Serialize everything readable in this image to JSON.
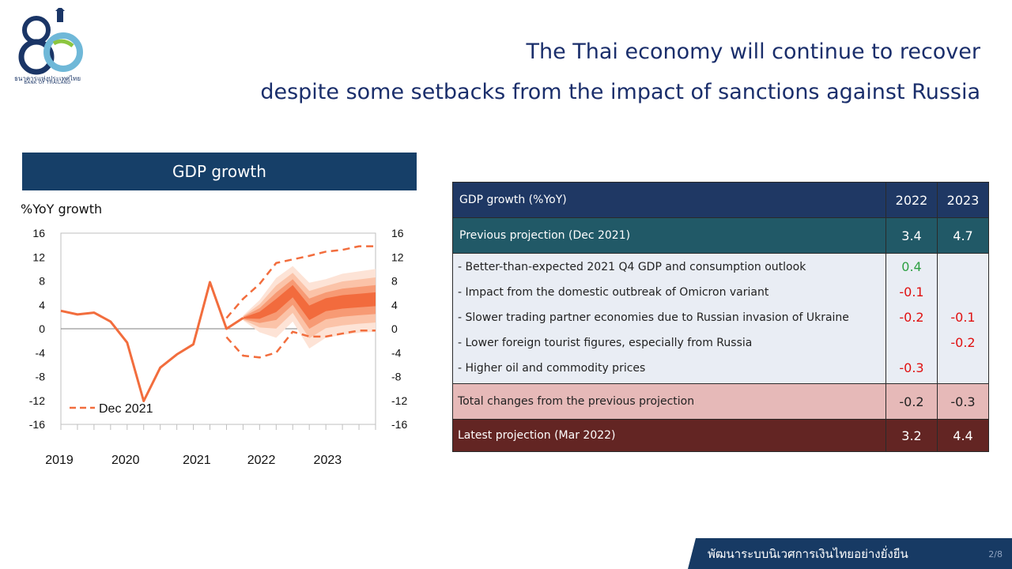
{
  "logo": {
    "name_th": "ธนาคารแห่งประเทศไทย",
    "name_en": "BANK OF THAILAND"
  },
  "title": {
    "line1": "The Thai economy will continue to recover",
    "line2": "despite some setbacks from the impact of sanctions against Russia"
  },
  "chart_header": "GDP growth",
  "chart_data": {
    "type": "line",
    "ylabel": "%YoY growth",
    "ylim": [
      -16,
      16
    ],
    "yticks": [
      "16",
      "12",
      "8",
      "4",
      "0",
      "-4",
      "-8",
      "-12",
      "-16"
    ],
    "xtick_labels": [
      "2019",
      "2020",
      "2021",
      "2022",
      "2023"
    ],
    "legend_label": "Dec 2021",
    "actual": {
      "x": [
        0,
        1,
        2,
        3,
        4,
        5,
        6,
        7,
        8,
        9,
        10,
        11
      ],
      "y": [
        3.0,
        2.4,
        2.7,
        1.2,
        -2.3,
        -12.1,
        -6.5,
        -4.3,
        -2.6,
        7.8,
        0.0,
        1.8
      ]
    },
    "projection_dec2021": {
      "x": [
        10,
        11,
        12,
        13,
        14,
        15,
        16,
        17,
        18,
        19
      ],
      "y": [
        -1.4,
        -4.5,
        -4.8,
        -4.0,
        -0.5,
        -1.3,
        -1.3,
        -0.8,
        -0.3,
        -0.3
      ]
    },
    "dec2021_upper": {
      "x": [
        10,
        11,
        12,
        13,
        14,
        15,
        16,
        17,
        18,
        19
      ],
      "y": [
        1.8,
        5.0,
        7.5,
        11.0,
        11.6,
        12.2,
        12.9,
        13.2,
        13.8,
        13.8
      ]
    },
    "fan_central": {
      "x": [
        11,
        12,
        13,
        14,
        15,
        16,
        17,
        18,
        19
      ],
      "y": [
        1.8,
        2.3,
        4.0,
        6.4,
        2.8,
        4.2,
        4.6,
        4.8,
        5.0
      ]
    },
    "fan_upper": [
      2.2,
      4.8,
      8.5,
      10.5,
      7.7,
      8.3,
      9.2,
      9.6,
      10.0
    ],
    "fan_lower": [
      1.4,
      -0.6,
      -1.5,
      1.2,
      -3.3,
      -1.5,
      -1.0,
      -0.7,
      -0.5
    ],
    "fan_colors": [
      "#fde3d6",
      "#fbc3a8",
      "#f79a74",
      "#f26b3d"
    ],
    "line_color": "#f26d3d"
  },
  "table": {
    "header": {
      "label": "GDP growth (%YoY)",
      "y1": "2022",
      "y2": "2023"
    },
    "previous": {
      "label": "Previous projection (Dec 2021)",
      "y1": "3.4",
      "y2": "4.7"
    },
    "items": [
      {
        "label": "- Better-than-expected  2021 Q4 GDP and consumption outlook",
        "y1": "0.4",
        "y2": ""
      },
      {
        "label": "- Impact from the domestic outbreak of Omicron variant",
        "y1": "-0.1",
        "y2": ""
      },
      {
        "label": "- Slower trading partner economies due to Russian invasion of Ukraine",
        "y1": "-0.2",
        "y2": "-0.1"
      },
      {
        "label": "- Lower foreign tourist figures, especially from Russia",
        "y1": "",
        "y2": "-0.2"
      },
      {
        "label": "- Higher oil and commodity prices",
        "y1": "-0.3",
        "y2": ""
      }
    ],
    "total": {
      "label": "Total changes from the previous projection",
      "y1": "-0.2",
      "y2": "-0.3"
    },
    "latest": {
      "label": "Latest projection (Mar 2022)",
      "y1": "3.2",
      "y2": "4.4"
    }
  },
  "footer": {
    "text": "พัฒนาระบบนิเวศการเงินไทยอย่างยั่งยืน",
    "page": "2/8"
  }
}
